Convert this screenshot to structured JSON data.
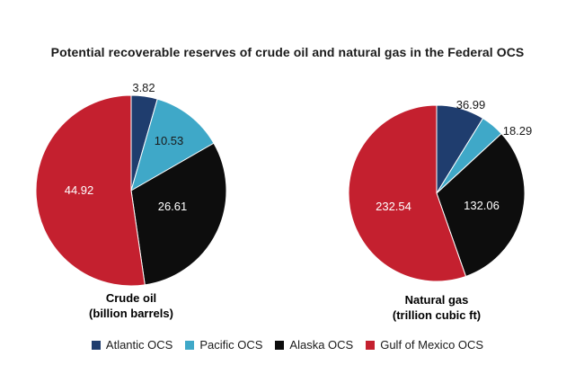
{
  "title": "Potential recoverable reserves of crude oil and natural gas in the Federal OCS",
  "colors": {
    "atlantic": "#1f3d6e",
    "pacific": "#3fa8c8",
    "alaska": "#0d0d0d",
    "gulf": "#c4202f"
  },
  "legend": [
    {
      "label": "Atlantic OCS",
      "color": "#1f3d6e"
    },
    {
      "label": "Pacific OCS",
      "color": "#3fa8c8"
    },
    {
      "label": "Alaska OCS",
      "color": "#0d0d0d"
    },
    {
      "label": "Gulf of Mexico OCS",
      "color": "#c4202f"
    }
  ],
  "chart_data": [
    {
      "type": "pie",
      "caption_line1": "Crude oil",
      "caption_line2": "(billion barrels)",
      "categories": [
        "Atlantic OCS",
        "Pacific OCS",
        "Alaska OCS",
        "Gulf of Mexico OCS"
      ],
      "values": [
        3.82,
        10.53,
        26.61,
        44.92
      ],
      "labels": [
        "3.82",
        "10.53",
        "26.61",
        "44.92"
      ]
    },
    {
      "type": "pie",
      "caption_line1": "Natural gas",
      "caption_line2": "(trillion cubic ft)",
      "categories": [
        "Atlantic OCS",
        "Pacific OCS",
        "Alaska OCS",
        "Gulf of Mexico OCS"
      ],
      "values": [
        36.99,
        18.29,
        132.06,
        232.54
      ],
      "labels": [
        "36.99",
        "18.29",
        "132.06",
        "232.54"
      ]
    }
  ]
}
